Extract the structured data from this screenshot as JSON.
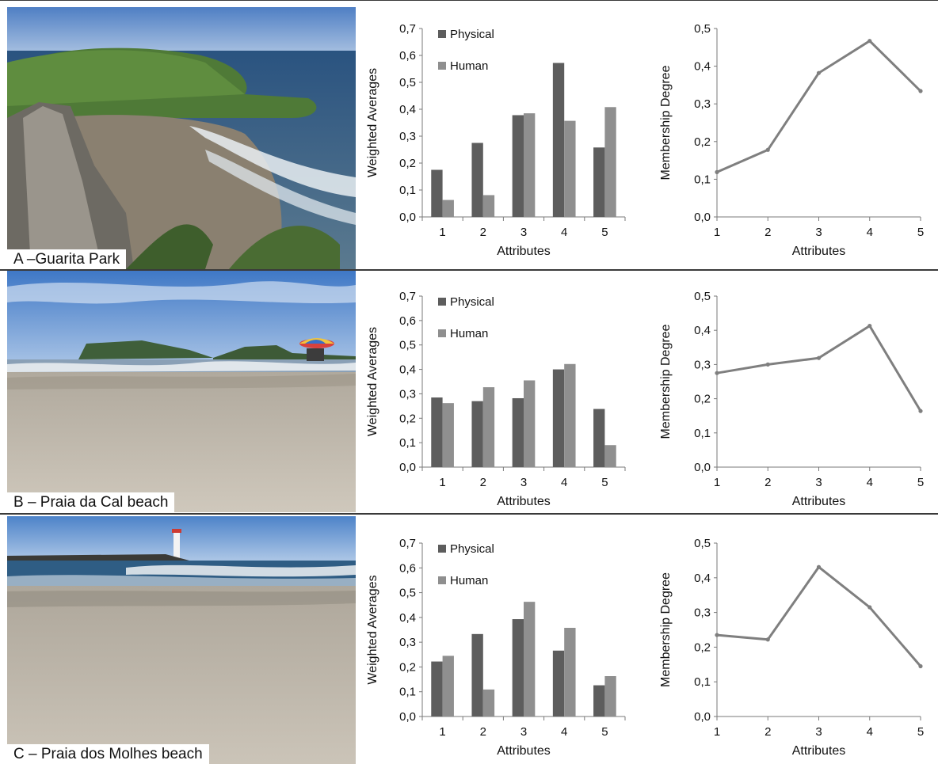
{
  "colors": {
    "physical": "#5d5d5d",
    "human": "#8f8f8f",
    "line": "#7f7f7f",
    "axis": "#7a7a7a"
  },
  "rows": [
    {
      "caption": "A –Guarita Park",
      "scene": "cliff-beach",
      "bar_chart": {
        "type": "bar",
        "categories": [
          "1",
          "2",
          "3",
          "4",
          "5"
        ],
        "series": [
          {
            "name": "Physical",
            "values": [
              0.175,
              0.275,
              0.378,
              0.572,
              0.258
            ]
          },
          {
            "name": "Human",
            "values": [
              0.063,
              0.081,
              0.385,
              0.357,
              0.408
            ]
          }
        ],
        "xlabel": "Attributes",
        "ylabel": "Weighted Averages",
        "ylim": [
          0,
          0.7
        ],
        "yticks": [
          "0,0",
          "0,1",
          "0,2",
          "0,3",
          "0,4",
          "0,5",
          "0,6",
          "0,7"
        ],
        "legend": "top-left"
      },
      "line_chart": {
        "type": "line",
        "x": [
          "1",
          "2",
          "3",
          "4",
          "5"
        ],
        "values": [
          0.119,
          0.178,
          0.382,
          0.467,
          0.334
        ],
        "xlabel": "Attributes",
        "ylabel": "Membership Degree",
        "ylim": [
          0,
          0.5
        ],
        "yticks": [
          "0,0",
          "0,1",
          "0,2",
          "0,3",
          "0,4",
          "0,5"
        ]
      }
    },
    {
      "caption": "B – Praia da Cal beach",
      "scene": "sandy-beach-headland",
      "bar_chart": {
        "type": "bar",
        "categories": [
          "1",
          "2",
          "3",
          "4",
          "5"
        ],
        "series": [
          {
            "name": "Physical",
            "values": [
              0.285,
              0.27,
              0.282,
              0.4,
              0.238
            ]
          },
          {
            "name": "Human",
            "values": [
              0.262,
              0.327,
              0.355,
              0.422,
              0.09
            ]
          }
        ],
        "xlabel": "Attributes",
        "ylabel": "Weighted Averages",
        "ylim": [
          0,
          0.7
        ],
        "yticks": [
          "0,0",
          "0,1",
          "0,2",
          "0,3",
          "0,4",
          "0,5",
          "0,6",
          "0,7"
        ],
        "legend": "top-left"
      },
      "line_chart": {
        "type": "line",
        "x": [
          "1",
          "2",
          "3",
          "4",
          "5"
        ],
        "values": [
          0.275,
          0.3,
          0.319,
          0.413,
          0.164
        ],
        "xlabel": "Attributes",
        "ylabel": "Membership Degree",
        "ylim": [
          0,
          0.5
        ],
        "yticks": [
          "0,0",
          "0,1",
          "0,2",
          "0,3",
          "0,4",
          "0,5"
        ]
      }
    },
    {
      "caption": "C – Praia dos Molhes beach",
      "scene": "sandy-beach-lighthouse",
      "bar_chart": {
        "type": "bar",
        "categories": [
          "1",
          "2",
          "3",
          "4",
          "5"
        ],
        "series": [
          {
            "name": "Physical",
            "values": [
              0.222,
              0.333,
              0.393,
              0.266,
              0.126
            ]
          },
          {
            "name": "Human",
            "values": [
              0.245,
              0.109,
              0.463,
              0.358,
              0.163
            ]
          }
        ],
        "xlabel": "Attributes",
        "ylabel": "Weighted Averages",
        "ylim": [
          0,
          0.7
        ],
        "yticks": [
          "0,0",
          "0,1",
          "0,2",
          "0,3",
          "0,4",
          "0,5",
          "0,6",
          "0,7"
        ],
        "legend": "top-left"
      },
      "line_chart": {
        "type": "line",
        "x": [
          "1",
          "2",
          "3",
          "4",
          "5"
        ],
        "values": [
          0.235,
          0.222,
          0.431,
          0.315,
          0.145
        ],
        "xlabel": "Attributes",
        "ylabel": "Membership Degree",
        "ylim": [
          0,
          0.5
        ],
        "yticks": [
          "0,0",
          "0,1",
          "0,2",
          "0,3",
          "0,4",
          "0,5"
        ]
      }
    }
  ]
}
